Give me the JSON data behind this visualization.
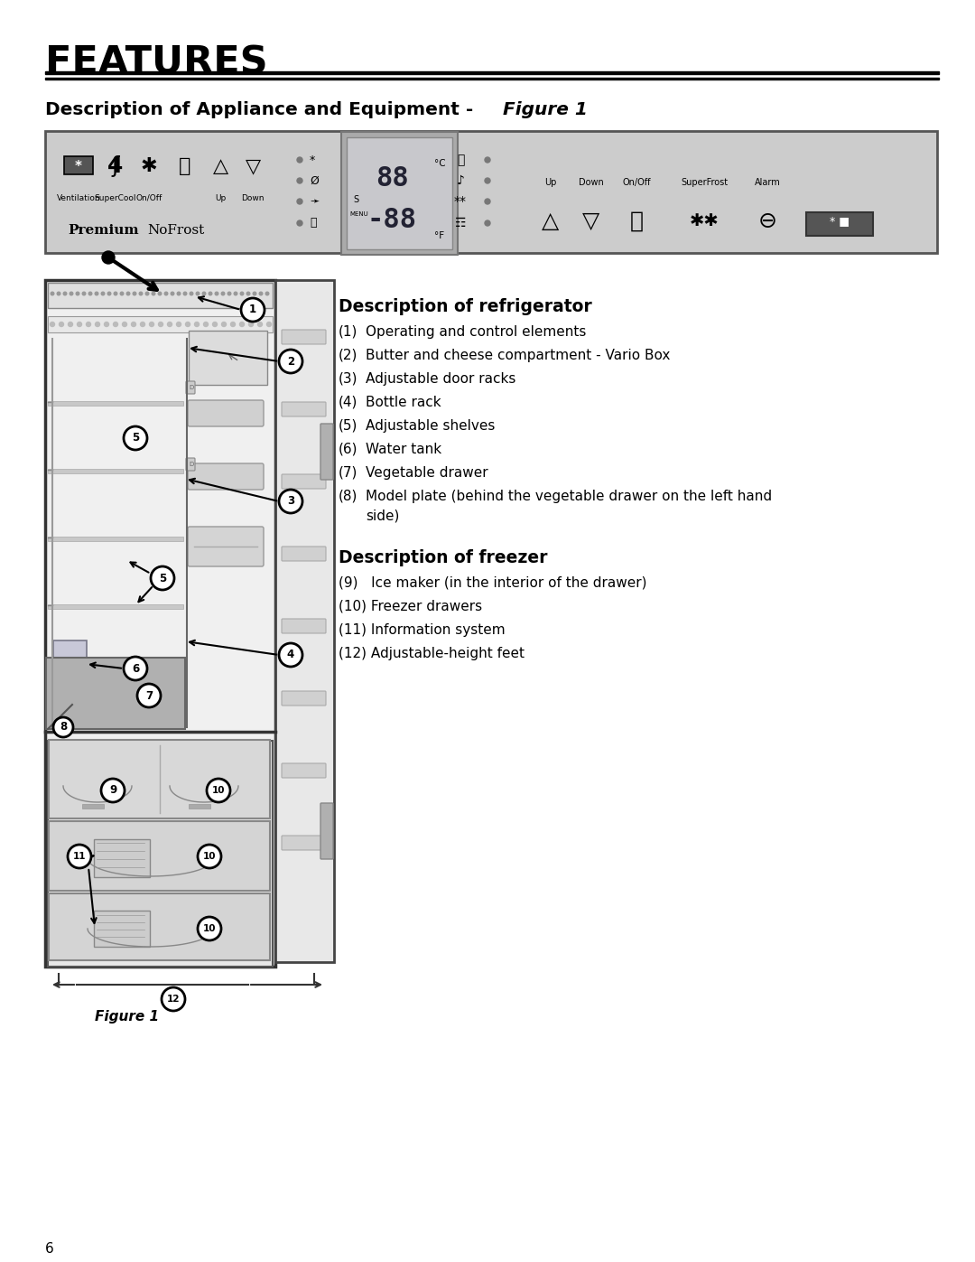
{
  "title": "FEATURES",
  "subtitle_bold": "Description of Appliance and Equipment",
  "subtitle_dash": " - ",
  "subtitle_italic": "Figure 1",
  "bg_color": "#ffffff",
  "panel_bg": "#d4d4d4",
  "panel_border": "#444444",
  "desc_refrigerator_title": "Description of refrigerator",
  "desc_refrigerator_items": [
    [
      "(1)",
      "Operating and control elements"
    ],
    [
      "(2)",
      "Butter and cheese compartment - Vario Box"
    ],
    [
      "(3)",
      "Adjustable door racks"
    ],
    [
      "(4)",
      "Bottle rack"
    ],
    [
      "(5)",
      "Adjustable shelves"
    ],
    [
      "(6)",
      "Water tank"
    ],
    [
      "(7)",
      "Vegetable drawer"
    ],
    [
      "(8)",
      "Model plate (behind the vegetable drawer on the left hand\nside)"
    ]
  ],
  "desc_freezer_title": "Description of freezer",
  "desc_freezer_items": [
    [
      "(9)",
      "  Ice maker (in the interior of the drawer)"
    ],
    [
      "(10)",
      "Freezer drawers"
    ],
    [
      "(11)",
      "Information system"
    ],
    [
      "(12)",
      "Adjustable-height feet"
    ]
  ],
  "figure_label": "Figure 1",
  "page_number": "6"
}
